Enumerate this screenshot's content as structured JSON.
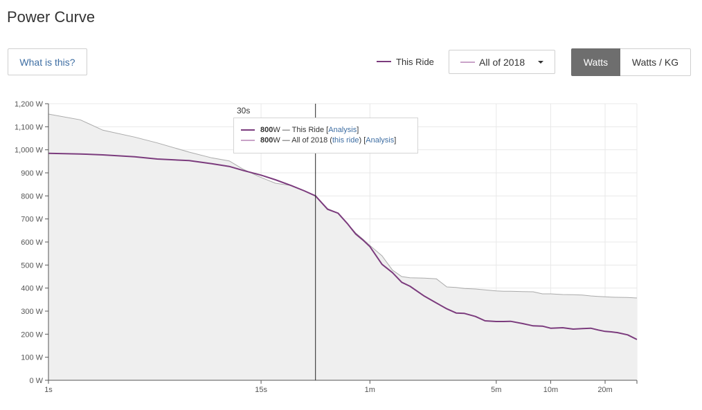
{
  "page": {
    "title": "Power Curve"
  },
  "header": {
    "what_is_this_label": "What is this?",
    "legend_this_ride_label": "This Ride",
    "compare_select_value": "All of 2018",
    "unit_toggle": {
      "watts_label": "Watts",
      "watts_kg_label": "Watts / KG",
      "active": "Watts"
    }
  },
  "colors": {
    "this_ride": "#7b3b7d",
    "compare": "#c9a3c8",
    "compare_line": "#aaaaaa",
    "compare_fill": "#efefef",
    "grid": "#e8e8e8",
    "axis": "#555555",
    "link": "#3e6ea3"
  },
  "tooltip": {
    "cursor_label": "30s",
    "row1": {
      "value": "800",
      "unit_text": " W — This Ride [",
      "link": "Analysis",
      "suffix": "]"
    },
    "row2": {
      "value": "800",
      "unit_text": " W — All of 2018 (",
      "link1": "this ride",
      "mid": ") [",
      "link2": "Analysis",
      "suffix": "]"
    }
  },
  "chart_data": {
    "type": "line",
    "title": "",
    "xlabel": "",
    "ylabel": "",
    "x_scale": "log",
    "x_unit": "seconds",
    "xlim": [
      1,
      1800
    ],
    "ylim": [
      0,
      1200
    ],
    "y_ticks": [
      0,
      100,
      200,
      300,
      400,
      500,
      600,
      700,
      800,
      900,
      1000,
      1100,
      1200
    ],
    "y_tick_labels": [
      "0 W",
      "100 W",
      "200 W",
      "300 W",
      "400 W",
      "500 W",
      "600 W",
      "700 W",
      "800 W",
      "900 W",
      "1,000 W",
      "1,100 W",
      "1,200 W"
    ],
    "x_ticks": [
      1,
      15,
      60,
      300,
      600,
      1200
    ],
    "x_tick_labels": [
      "1s",
      "15s",
      "1m",
      "5m",
      "10m",
      "20m"
    ],
    "grid": true,
    "cursor_x": 30,
    "series": [
      {
        "name": "This Ride",
        "x": [
          1,
          1.5,
          2,
          3,
          4,
          6,
          8,
          10,
          12,
          15,
          18,
          22,
          26,
          30,
          35,
          40,
          45,
          50,
          55,
          60,
          70,
          80,
          90,
          100,
          120,
          140,
          160,
          180,
          200,
          230,
          260,
          300,
          330,
          360,
          420,
          480,
          540,
          600,
          700,
          800,
          900,
          1000,
          1100,
          1200,
          1300,
          1400,
          1600,
          1800
        ],
        "y": [
          985,
          982,
          978,
          970,
          960,
          953,
          940,
          928,
          910,
          890,
          870,
          845,
          822,
          800,
          742,
          725,
          680,
          635,
          608,
          580,
          503,
          467,
          425,
          408,
          365,
          335,
          310,
          292,
          290,
          277,
          258,
          255,
          255,
          256,
          246,
          236,
          235,
          226,
          228,
          222,
          224,
          226,
          218,
          212,
          210,
          207,
          197,
          177
        ]
      },
      {
        "name": "All of 2018",
        "x": [
          1,
          1.5,
          2,
          3,
          4,
          6,
          8,
          10,
          12,
          15,
          18,
          22,
          26,
          30,
          35,
          40,
          45,
          50,
          55,
          60,
          70,
          80,
          90,
          100,
          120,
          140,
          160,
          180,
          200,
          230,
          260,
          300,
          330,
          360,
          420,
          480,
          540,
          600,
          700,
          800,
          900,
          1000,
          1100,
          1200,
          1300,
          1400,
          1600,
          1800
        ],
        "y": [
          1155,
          1130,
          1085,
          1055,
          1030,
          990,
          965,
          952,
          915,
          880,
          855,
          845,
          822,
          800,
          745,
          725,
          680,
          640,
          612,
          585,
          540,
          478,
          450,
          445,
          443,
          440,
          405,
          403,
          398,
          396,
          392,
          388,
          386,
          386,
          385,
          384,
          375,
          375,
          372,
          371,
          370,
          366,
          364,
          362,
          361,
          360,
          359,
          357
        ]
      }
    ]
  }
}
